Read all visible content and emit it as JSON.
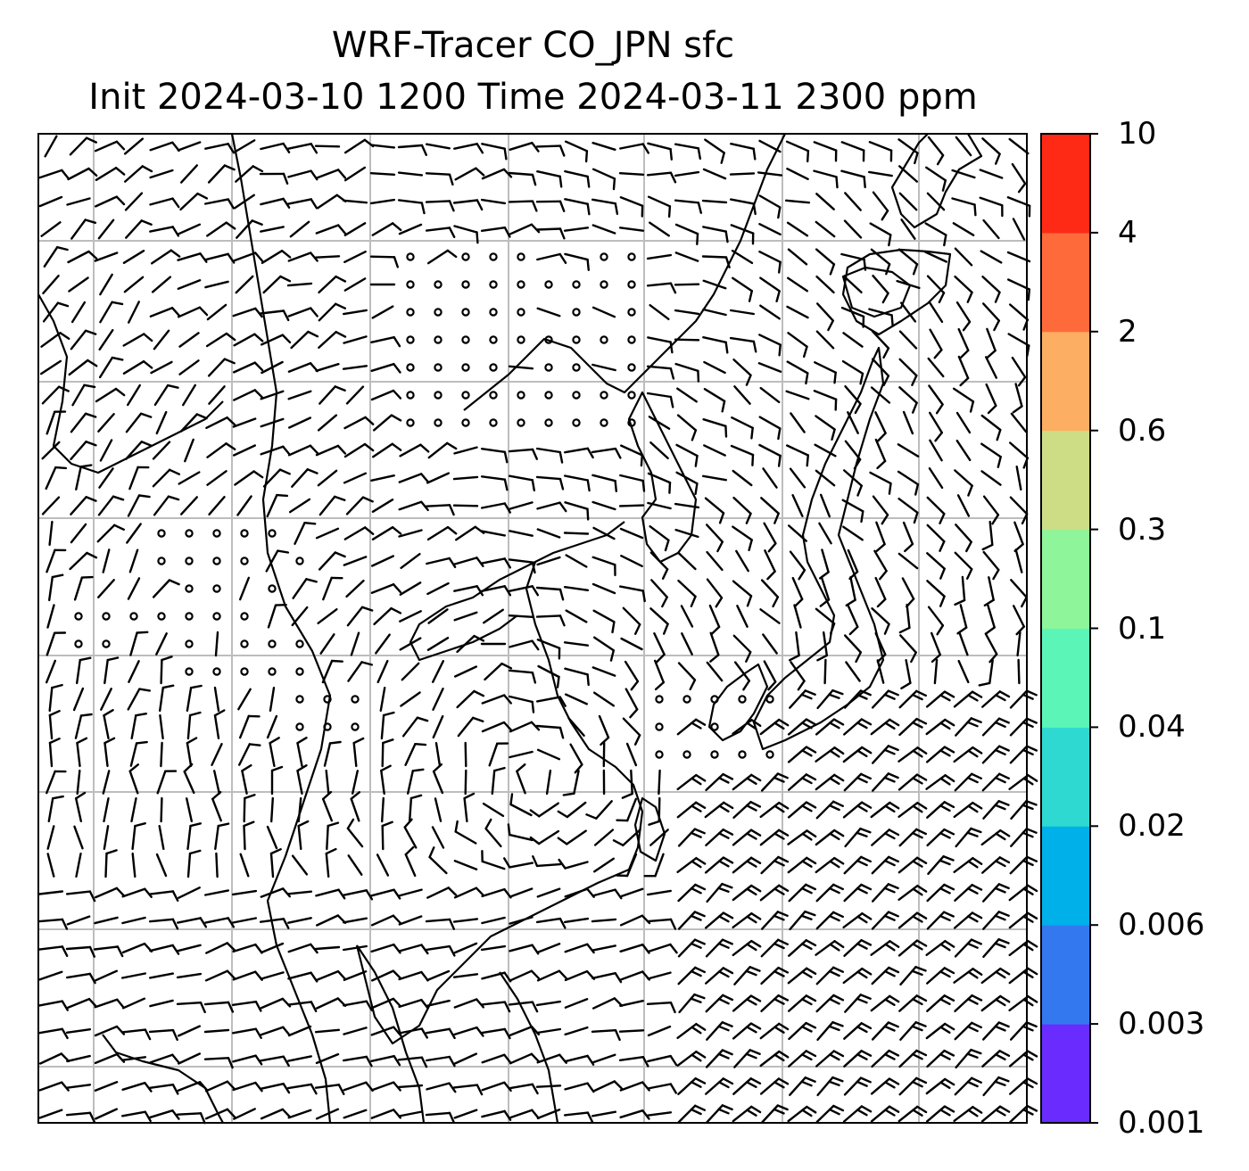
{
  "title": {
    "line1": "WRF-Tracer CO_JPN sfc",
    "line2": "Init 2024-03-10 1200 Time 2024-03-11 2300 ppm"
  },
  "colorbar": {
    "levels": [
      "0.001",
      "0.003",
      "0.006",
      "0.02",
      "0.04",
      "0.1",
      "0.3",
      "0.6",
      "2",
      "4",
      "10"
    ],
    "colors": [
      "#6a2bff",
      "#3478f0",
      "#00b0e8",
      "#2ed9d2",
      "#5cf5b8",
      "#8ef59a",
      "#cddd85",
      "#fcae62",
      "#ff6a3a",
      "#ff2a16"
    ]
  },
  "map": {
    "gridlines": true,
    "wind_barbs": true,
    "calm_markers": "circles",
    "coastlines": true,
    "gridline_color": "#bdbdbd"
  }
}
